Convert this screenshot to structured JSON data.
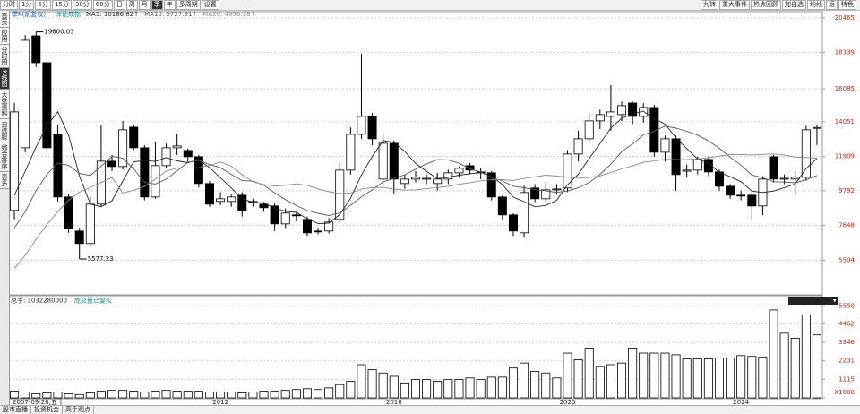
{
  "toolbar": {
    "periods": [
      "分时",
      "1分",
      "5分",
      "15分",
      "30分",
      "60分",
      "日",
      "周",
      "月",
      "季",
      "年",
      "多周期",
      "设置"
    ],
    "selected_period": 9,
    "tools": [
      "九转",
      "重大事件",
      "热点回顾",
      "加自选",
      "均线",
      "返",
      "特色"
    ]
  },
  "sidebar": {
    "items": [
      "首页",
      "应用",
      "分时图",
      "K线图",
      "大盘资料",
      "自选股",
      "综合排序",
      "更多"
    ],
    "selected": 3
  },
  "chart_data": [
    {
      "type": "candlestick",
      "title": "季K(前复权)",
      "subtitle": "深证成指",
      "categories": [
        "2007-09-28,五",
        null,
        null,
        null,
        null,
        null,
        null,
        null,
        null,
        null,
        null,
        null,
        null,
        null,
        null,
        null,
        null,
        null,
        null,
        "2012",
        null,
        null,
        null,
        null,
        null,
        null,
        null,
        null,
        null,
        null,
        null,
        null,
        null,
        null,
        null,
        "2016",
        null,
        null,
        null,
        null,
        null,
        null,
        null,
        null,
        null,
        null,
        null,
        null,
        null,
        null,
        null,
        "2020",
        null,
        null,
        null,
        null,
        null,
        null,
        null,
        null,
        null,
        null,
        null,
        null,
        null,
        null,
        null,
        "2024",
        null,
        null,
        null,
        null,
        null,
        null,
        null
      ],
      "open": [
        8575,
        12447,
        19359,
        17700,
        13276,
        9405,
        7304,
        6530,
        8963,
        11617,
        11285,
        13718,
        12447,
        9405,
        11341,
        12447,
        12281,
        11894,
        10235,
        9129,
        9129,
        9516,
        9100,
        8963,
        8852,
        7746,
        8300,
        8023,
        7304,
        7304,
        8023,
        11064,
        13276,
        14382,
        10511,
        12723,
        10235,
        10511,
        10511,
        10235,
        10511,
        10898,
        11341,
        10953,
        10898,
        9405,
        8299,
        7193,
        9958,
        9294,
        9847,
        9958,
        12059,
        13000,
        14106,
        14382,
        14493,
        15211,
        14382,
        14935,
        12170,
        13000,
        11000,
        11064,
        11728,
        10953,
        10069,
        9516,
        9516,
        8852,
        11894,
        10511,
        10511,
        10622,
        13663
      ],
      "high": [
        15211,
        19400,
        19600.03,
        17850,
        13829,
        9600,
        7500,
        9405,
        13829,
        12000,
        14106,
        13900,
        12600,
        12800,
        12700,
        13300,
        12400,
        12000,
        10400,
        9700,
        9600,
        9700,
        9300,
        9100,
        9000,
        8700,
        8500,
        8200,
        7500,
        8100,
        11500,
        13700,
        18253,
        14600,
        13300,
        12900,
        10800,
        11000,
        10800,
        10900,
        11100,
        11300,
        11500,
        11200,
        11000,
        9500,
        8400,
        10100,
        10200,
        10300,
        10200,
        12300,
        13500,
        14600,
        14800,
        16318,
        15300,
        15300,
        15200,
        15100,
        13200,
        13200,
        11400,
        11900,
        11900,
        11100,
        10200,
        9800,
        9700,
        10700,
        12000,
        10800,
        11000,
        13800,
        13829
      ],
      "low": [
        8023,
        12170,
        17423,
        12170,
        9129,
        7193,
        5577.23,
        6400,
        8800,
        11000,
        11100,
        12300,
        9200,
        9300,
        11200,
        12000,
        11500,
        10000,
        8800,
        8900,
        8800,
        8200,
        8800,
        8500,
        7300,
        7500,
        7900,
        7000,
        7100,
        7150,
        7800,
        10800,
        13000,
        12600,
        10200,
        9600,
        9900,
        10300,
        10200,
        9800,
        10200,
        10600,
        10800,
        10500,
        9200,
        8000,
        7000,
        6900,
        9100,
        9100,
        9600,
        9700,
        11600,
        12800,
        13600,
        13500,
        14100,
        13900,
        14000,
        11900,
        11600,
        9800,
        10600,
        10800,
        10700,
        9800,
        9300,
        9200,
        8000,
        8300,
        10300,
        10200,
        9500,
        10400,
        12612
      ],
      "close": [
        14659,
        19083,
        17700,
        12447,
        9405,
        7469,
        6530,
        8963,
        11617,
        11285,
        13553,
        12447,
        9405,
        11341,
        12447,
        12557,
        11894,
        10235,
        8963,
        9294,
        9405,
        8575,
        9129,
        8742,
        7746,
        8410,
        8250,
        7193,
        7250,
        7857,
        11064,
        13276,
        14382,
        13000,
        12723,
        10511,
        10511,
        10622,
        10560,
        10511,
        10900,
        11175,
        11064,
        10900,
        9405,
        8299,
        7304,
        9681,
        9294,
        9847,
        9900,
        12059,
        13000,
        14106,
        14493,
        14659,
        15046,
        14382,
        14935,
        12170,
        13000,
        10788,
        11064,
        11728,
        10953,
        10069,
        9516,
        9480,
        8852,
        10511,
        10511,
        10560,
        10622,
        13553,
        13700
      ],
      "up_color": "#ffffff",
      "down_color": "#000000",
      "series": [
        {
          "name": "MA5: 10186.82↑",
          "color": "#222222",
          "values": [
            9500,
            11000,
            12500,
            13800,
            14659,
            13221,
            10710,
            8963,
            8797,
            9173,
            10390,
            11573,
            11661,
            11606,
            11839,
            11639,
            11529,
            11695,
            11219,
            10589,
            9958,
            9294,
            9073,
            9029,
            8719,
            8520,
            8455,
            8068,
            7770,
            7792,
            8323,
            9328,
            10766,
            11916,
            12889,
            12778,
            12225,
            11473,
            10985,
            10543,
            10621,
            10754,
            10842,
            10910,
            10689,
            10169,
            9394,
            9118,
            8797,
            8885,
            9205,
            10156,
            10820,
            11782,
            12712,
            13663,
            14261,
            14537,
            14703,
            14238,
            13907,
            13055,
            12391,
            11750,
            11507,
            10920,
            10666,
            10349,
            9774,
            9686,
            9774,
            9983,
            10211,
            11151,
            11789
          ]
        },
        {
          "name": "MA10: 5727.91↑",
          "color": "#555555",
          "values": [
            7500,
            8500,
            9800,
            10800,
            11500,
            11361,
            10855,
            10732,
            11299,
            11916,
            11806,
            11142,
            10312,
            10202,
            10506,
            11015,
            11551,
            11678,
            11413,
            11214,
            10799,
            10412,
            10384,
            10124,
            9654,
            9239,
            8875,
            8571,
            8400,
            8256,
            8422,
            8892,
            9417,
            9843,
            10341,
            10551,
            10777,
            11120,
            11451,
            11716,
            11700,
            11490,
            11158,
            10948,
            10616,
            10395,
            10074,
            9980,
            9854,
            9787,
            9687,
            9775,
            9969,
            10290,
            10799,
            11434,
            12209,
            12679,
            13243,
            13475,
            13785,
            13658,
            13464,
            13227,
            12873,
            12414,
            11861,
            11370,
            10762,
            10597,
            10347,
            10325,
            10280,
            10463,
            10738
          ]
        },
        {
          "name": "MA20: 4996.38↑",
          "color": "#888888",
          "values": [
            5000,
            5800,
            6800,
            7700,
            8500,
            9200,
            9700,
            10000,
            10300,
            10600,
            9653,
            9821,
            10056,
            10501,
            11003,
            11188,
            11203,
            11205,
            11356,
            11565,
            11303,
            10777,
            10348,
            10163,
            10080,
            10127,
            10213,
            10125,
            9907,
            9735,
            9611,
            9652,
            9901,
            9984,
            9998,
            9895,
            9826,
            9846,
            9926,
            9986,
            10061,
            10191,
            10288,
            10396,
            10479,
            10473,
            10426,
            10550,
            10653,
            10752,
            10694,
            10633,
            10564,
            10619,
            10708,
            10915,
            11142,
            11330,
            11549,
            11631,
            11736,
            11717,
            11717,
            11759,
            11836,
            11924,
            12035,
            12025,
            12003,
            12036,
            12066,
            11992,
            11872,
            11845,
            11806
          ]
        }
      ],
      "ylim": [
        3420,
        20740
      ],
      "yticks": [
        20465,
        18339,
        16085,
        14051,
        11909,
        9792,
        7648,
        5504
      ],
      "grid": true
    },
    {
      "type": "bar",
      "title": "总手:",
      "total": 3032280000,
      "subtitle": "成交量已复权",
      "color": "#000000",
      "values": [
        400,
        350,
        250,
        300,
        350,
        250,
        200,
        300,
        400,
        450,
        450,
        400,
        350,
        400,
        450,
        400,
        400,
        400,
        350,
        350,
        350,
        300,
        350,
        400,
        400,
        450,
        500,
        550,
        500,
        600,
        800,
        1000,
        2000,
        1700,
        1500,
        1300,
        900,
        1100,
        1100,
        1000,
        1100,
        1100,
        1200,
        1100,
        1250,
        1250,
        1800,
        2100,
        1600,
        1500,
        1200,
        2700,
        2300,
        3000,
        1900,
        2000,
        2100,
        3000,
        2700,
        2700,
        2700,
        2600,
        2350,
        2350,
        2350,
        2400,
        2400,
        2550,
        2500,
        2450,
        5300,
        3900,
        3600,
        5000,
        3800
      ],
      "ylim": [
        0,
        5620
      ],
      "yticks": [
        5550,
        4462,
        3346,
        2231,
        1115,
        {
          "value": 0,
          "label": "X1000"
        }
      ],
      "grid": true
    }
  ],
  "footer": {
    "tabs": [
      "股市直播",
      "投资机会",
      "高手观点"
    ]
  }
}
